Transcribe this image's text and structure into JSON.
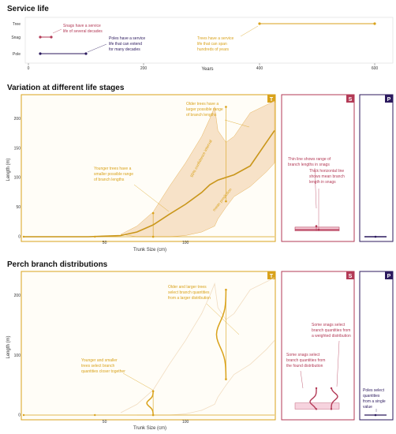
{
  "colors": {
    "tree": "#d9a21b",
    "tree_fill": "#f7e2c8",
    "tree_dark": "#b8860b",
    "snag": "#b33a56",
    "snag_fill": "#f5c9d6",
    "pole": "#2c1a5e",
    "panel_bg_tree": "#fffaf0"
  },
  "service_life": {
    "title": "Service life",
    "xlabel": "Years",
    "row_labels": [
      "Tree",
      "Snag",
      "Pole"
    ],
    "annotations": {
      "snag": [
        "Snags have a service",
        "life of several decades"
      ],
      "pole": [
        "Poles have a service",
        "life that can extend",
        "for many decades"
      ],
      "tree": [
        "Trees have a service",
        "life that can span",
        "hundreds of years"
      ]
    }
  },
  "variation": {
    "title": "Variation at different life stages",
    "ylabel": "Length (m)",
    "xlabel": "Trunk Size (cm)",
    "badges": {
      "tree": "T",
      "snag": "S",
      "pole": "P"
    },
    "annotations": {
      "older": [
        "Older trees have a",
        "larger possible range",
        "of branch lengths"
      ],
      "younger": [
        "Younger trees have a",
        "smaller possible range",
        "of branch lengths"
      ],
      "ci": "95% confidence interval",
      "mean": "mean prediction",
      "snag_thin": [
        "Thin line shows range of",
        "branch lengths in snags"
      ],
      "snag_thick": [
        "Thick horizontal line",
        "shows mean branch",
        "length in snags"
      ]
    }
  },
  "perch": {
    "title": "Perch branch distributions",
    "ylabel": "Length (m)",
    "xlabel": "Trunk Size (cm)",
    "badges": {
      "tree": "T",
      "snag": "S",
      "pole": "P"
    },
    "annotations": {
      "older": [
        "Older and larger trees",
        "select branch quantities",
        "from a larger distribution"
      ],
      "younger": [
        "Younger and smaller",
        "trees select branch",
        "quantities closer together"
      ],
      "snag_weighted": [
        "Some snags select",
        "branch quantities from",
        "a weighted distribution"
      ],
      "snag_found": [
        "Some snags select",
        "branch quantities from",
        "the found distribution"
      ],
      "pole": [
        "Poles select",
        "quantities",
        "from a single",
        "value"
      ]
    }
  },
  "chart_data": [
    {
      "type": "line",
      "title": "Service life",
      "xlabel": "Years",
      "xlim": [
        0,
        620
      ],
      "xticks": [
        0,
        200,
        400,
        600
      ],
      "categories": [
        "Tree",
        "Snag",
        "Pole"
      ],
      "series": [
        {
          "name": "Tree",
          "x": [
            400,
            600
          ]
        },
        {
          "name": "Snag",
          "x": [
            20,
            40
          ]
        },
        {
          "name": "Pole",
          "x": [
            20,
            100
          ]
        }
      ]
    },
    {
      "type": "area",
      "title": "Variation at different life stages",
      "xlabel": "Trunk Size (cm)",
      "ylabel": "Length (m)",
      "xlim": [
        0,
        155
      ],
      "ylim": [
        0,
        230
      ],
      "xticks": [
        50,
        100
      ],
      "yticks": [
        0,
        50,
        100,
        150,
        200
      ],
      "tree_mean": {
        "x": [
          0,
          40,
          60,
          70,
          80,
          90,
          100,
          110,
          115,
          120,
          130,
          140,
          150,
          155
        ],
        "y": [
          0,
          0,
          2,
          8,
          20,
          38,
          55,
          75,
          88,
          96,
          105,
          120,
          160,
          180
        ]
      },
      "tree_upper": {
        "x": [
          60,
          70,
          80,
          90,
          100,
          110,
          115,
          118,
          120,
          125,
          130,
          140,
          155
        ],
        "y": [
          4,
          18,
          42,
          85,
          125,
          170,
          200,
          220,
          180,
          160,
          170,
          210,
          230
        ]
      },
      "tree_lower": {
        "x": [
          70,
          90,
          100,
          110,
          118,
          120,
          125,
          130,
          140,
          150,
          155
        ],
        "y": [
          0,
          0,
          2,
          8,
          18,
          30,
          50,
          68,
          85,
          110,
          125
        ]
      },
      "ranges": [
        {
          "x": 80,
          "y": [
            0,
            40
          ]
        },
        {
          "x": 125,
          "y": [
            60,
            220
          ]
        }
      ],
      "snag": {
        "range": [
          10,
          45
        ],
        "mean": 12
      },
      "pole": {
        "value": 0
      }
    },
    {
      "type": "line",
      "title": "Perch branch distributions",
      "xlabel": "Trunk Size (cm)",
      "ylabel": "Length (m)",
      "xlim": [
        0,
        155
      ],
      "ylim": [
        0,
        230
      ],
      "xticks": [
        50,
        100
      ],
      "yticks": [
        0,
        100,
        200
      ],
      "young_distribution": {
        "x": 80,
        "range": [
          0,
          40
        ]
      },
      "old_distribution": {
        "x": 125,
        "range": [
          60,
          210
        ]
      },
      "snag": {
        "range": [
          10,
          45
        ]
      },
      "pole": {
        "value": 0
      }
    }
  ]
}
